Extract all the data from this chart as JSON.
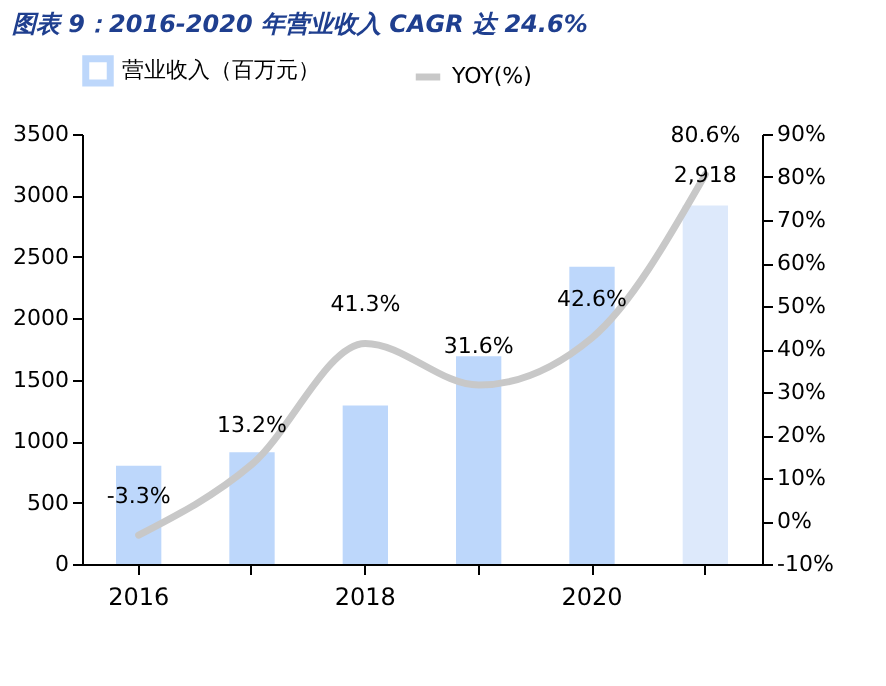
{
  "chart_data": {
    "type": "bar",
    "title": "图表 9：2016-2020 年营业收入 CAGR 达 24.6%",
    "categories": [
      "2016",
      null,
      "2018",
      null,
      "2020",
      null
    ],
    "series": [
      {
        "name": "营业收入（百万元）",
        "color": "#bdd7fb",
        "colors": [
          "#bdd7fb",
          "#bdd7fb",
          "#bdd7fb",
          "#bdd7fb",
          "#bdd7fb",
          "#dde9fb"
        ],
        "values": [
          800,
          910,
          1290,
          1690,
          2420,
          2918
        ],
        "value_labels": [
          null,
          null,
          null,
          null,
          null,
          "2,918"
        ]
      },
      {
        "name": "YOY(%)",
        "type": "line",
        "axis": "y2",
        "color": "#c8c8c8",
        "values": [
          -3.3,
          13.2,
          41.3,
          31.6,
          42.6,
          80.6
        ],
        "value_labels": [
          "-3.3%",
          "13.2%",
          "41.3%",
          "31.6%",
          "42.6%",
          "80.6%"
        ]
      }
    ],
    "ylim": [
      0,
      3500
    ],
    "yticks": [
      0,
      500,
      1000,
      1500,
      2000,
      2500,
      3000,
      3500
    ],
    "y2lim": [
      -10,
      90
    ],
    "y2ticks": [
      {
        "value": -10,
        "label": "-10%"
      },
      {
        "value": 0,
        "label": "0%"
      },
      {
        "value": 10,
        "label": "10%"
      },
      {
        "value": 20,
        "label": "20%"
      },
      {
        "value": 30,
        "label": "30%"
      },
      {
        "value": 40,
        "label": "40%"
      },
      {
        "value": 50,
        "label": "50%"
      },
      {
        "value": 60,
        "label": "60%"
      },
      {
        "value": 70,
        "label": "70%"
      },
      {
        "value": 80,
        "label": "80%"
      },
      {
        "value": 90,
        "label": "90%"
      }
    ],
    "legend": "top",
    "grid": false
  }
}
